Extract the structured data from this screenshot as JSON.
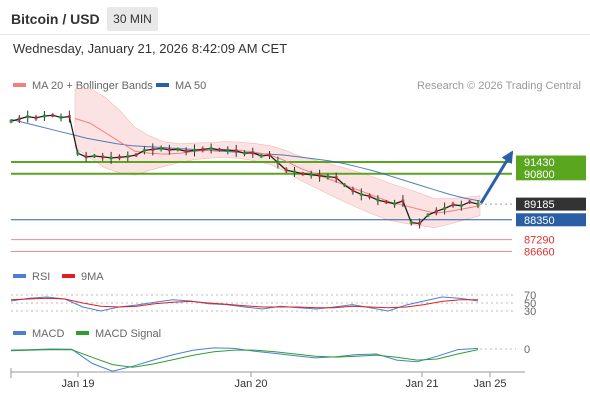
{
  "header": {
    "title": "Bitcoin / USD",
    "timeframe": "30 MIN",
    "datetime": "Wednesday, January 21, 2026 8:42:09 AM CET"
  },
  "legend_main": [
    {
      "label": "MA 20 + Bollinger Bands",
      "color": "#f08080"
    },
    {
      "label": "MA 50",
      "color": "#2a5fa5"
    }
  ],
  "copyright": "Research © 2026 Trading Central",
  "legend_rsi": [
    {
      "label": "RSI",
      "color": "#4a7fd4"
    },
    {
      "label": "9MA",
      "color": "#e02020"
    }
  ],
  "legend_macd": [
    {
      "label": "MACD",
      "color": "#4a7fd4"
    },
    {
      "label": "MACD Signal",
      "color": "#2e9e2e"
    }
  ],
  "chart_data": {
    "type": "line",
    "series_name": "Bitcoin / USD 30 MIN",
    "x_ticks": [
      "Jan 19",
      "Jan 20",
      "Jan 21",
      "Jan 25"
    ],
    "price_levels": [
      {
        "value": 91430,
        "kind": "resistance",
        "color": "#5aa61e"
      },
      {
        "value": 90800,
        "kind": "resistance",
        "color": "#5aa61e"
      },
      {
        "value": 89185,
        "kind": "last-price",
        "color": "#333333"
      },
      {
        "value": 88350,
        "kind": "pivot",
        "color": "#2a5fa5"
      },
      {
        "value": 87290,
        "kind": "support",
        "color": "#e03030"
      },
      {
        "value": 86660,
        "kind": "support",
        "color": "#e03030"
      }
    ],
    "price_ylim": [
      86100,
      95000
    ],
    "price": [
      93600,
      93720,
      93850,
      93780,
      93880,
      93920,
      93800,
      93850,
      91900,
      91700,
      91750,
      91700,
      91650,
      91680,
      91720,
      91800,
      92050,
      92100,
      92150,
      92080,
      92100,
      92000,
      92050,
      92100,
      92150,
      92080,
      92050,
      92020,
      91900,
      91920,
      91750,
      91800,
      91400,
      91000,
      90900,
      90800,
      90750,
      90700,
      90650,
      90600,
      90200,
      89900,
      89700,
      89600,
      89400,
      89300,
      89200,
      89350,
      88200,
      88150,
      88600,
      88800,
      88950,
      89150,
      89100,
      89300,
      89185
    ],
    "ma50": [
      93700,
      93500,
      93300,
      93100,
      92900,
      92700,
      92550,
      92400,
      92300,
      92250,
      92200,
      92150,
      92100,
      92050,
      92000,
      91950,
      91900,
      91850,
      91800,
      91700,
      91600,
      91500,
      91350,
      91150,
      90950,
      90700,
      90450,
      90200,
      89950,
      89700,
      89500,
      89350
    ],
    "ma20": [
      93750,
      93500,
      93000,
      92500,
      92000,
      91900,
      91850,
      91900,
      92000,
      92050,
      92100,
      92050,
      91950,
      91800,
      91500,
      91100,
      90800,
      90500,
      90200,
      89900,
      89600,
      89300,
      89100,
      88900,
      88700,
      88800,
      88950,
      89100
    ],
    "rsi": {
      "levels": [
        70,
        50,
        30
      ],
      "values": [
        55,
        62,
        65,
        60,
        40,
        30,
        40,
        45,
        52,
        58,
        55,
        48,
        46,
        40,
        35,
        42,
        38,
        35,
        40,
        46,
        38,
        30,
        45,
        55,
        65,
        62,
        55
      ],
      "ma9": [
        58,
        60,
        62,
        60,
        50,
        42,
        40,
        42,
        48,
        52,
        54,
        50,
        47,
        43,
        40,
        40,
        40,
        38,
        38,
        42,
        40,
        38,
        40,
        46,
        54,
        58,
        58
      ]
    },
    "macd": {
      "zero": 0,
      "values": [
        -20,
        -10,
        0,
        -5,
        -260,
        -400,
        -310,
        -200,
        -100,
        -20,
        20,
        10,
        -40,
        -80,
        -120,
        -160,
        -140,
        -100,
        -90,
        -200,
        -230,
        -130,
        -10,
        10
      ],
      "signal": [
        -30,
        -20,
        -10,
        -15,
        -150,
        -280,
        -330,
        -270,
        -190,
        -110,
        -50,
        -20,
        -20,
        -50,
        -90,
        -130,
        -145,
        -130,
        -110,
        -150,
        -200,
        -180,
        -90,
        -10
      ]
    }
  }
}
